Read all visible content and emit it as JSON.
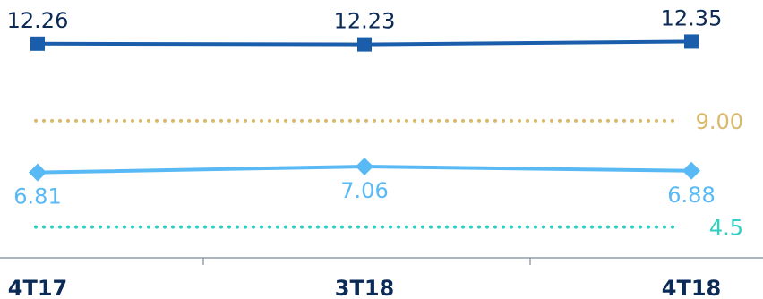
{
  "chart_data": {
    "type": "line",
    "categories": [
      "4T17",
      "3T18",
      "4T18"
    ],
    "series": [
      {
        "values": [
          12.26,
          12.23,
          12.35
        ],
        "labels": [
          "12.26",
          "12.23",
          "12.35"
        ],
        "color": "#1a5eab",
        "marker": "square"
      },
      {
        "values": [
          6.81,
          7.06,
          6.88
        ],
        "labels": [
          "6.81",
          "7.06",
          "6.88"
        ],
        "color": "#58b9f5",
        "marker": "diamond"
      }
    ],
    "reference_lines": [
      {
        "value": 9.0,
        "label": "9.00",
        "color": "#d9b96a",
        "style": "dotted"
      },
      {
        "value": 4.5,
        "label": "4.5",
        "color": "#2ed0c1",
        "style": "dotted"
      }
    ],
    "title": "",
    "xlabel": "",
    "ylabel": "",
    "ylim": [
      3.5,
      13.2
    ],
    "grid": false,
    "legend": "none"
  }
}
